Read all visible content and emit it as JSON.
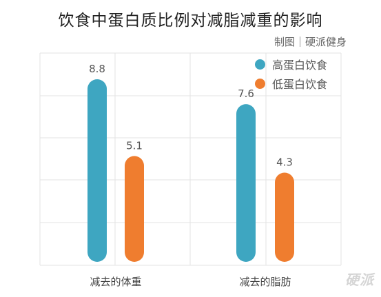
{
  "header": {
    "title": "饮食中蛋白质比例对减脂减重的影响",
    "credit": "制图｜硬派健身"
  },
  "watermark": "硬派",
  "chart_data": {
    "type": "bar",
    "title": "饮食中蛋白质比例对减脂减重的影响",
    "categories": [
      "减去的体重",
      "减去的脂肪"
    ],
    "series": [
      {
        "name": "高蛋白饮食",
        "color": "#3ea6c1",
        "values": [
          8.8,
          7.6
        ]
      },
      {
        "name": "低蛋白饮食",
        "color": "#ef7d2f",
        "values": [
          5.1,
          4.3
        ]
      }
    ],
    "value_labels": [
      [
        "8.8",
        "7.6"
      ],
      [
        "5.1",
        "4.3"
      ]
    ],
    "ylim": [
      0,
      10
    ],
    "grid": true,
    "legend": "top-right",
    "xlabel": "",
    "ylabel": ""
  }
}
